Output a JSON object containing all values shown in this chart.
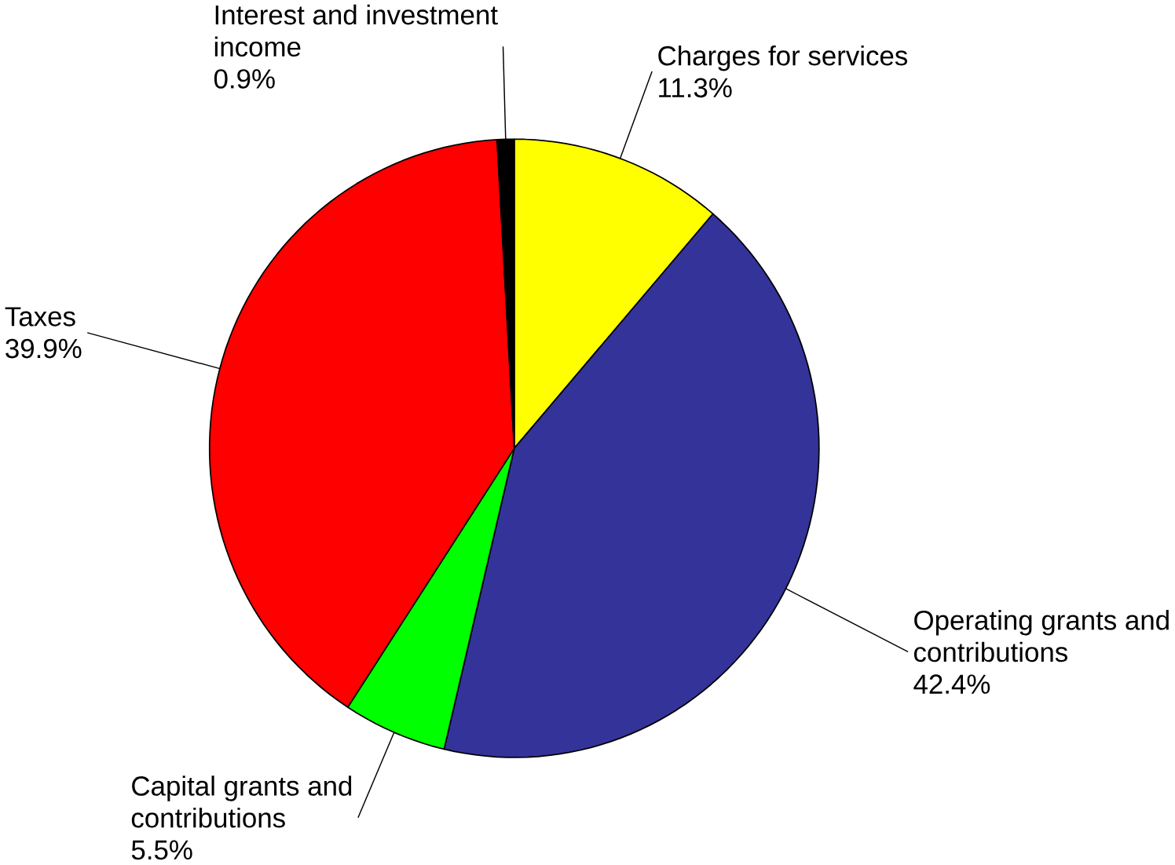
{
  "chart_data": {
    "type": "pie",
    "categories": [
      "Charges for services",
      "Operating grants and contributions",
      "Capital grants and contributions",
      "Taxes",
      "Interest and investment income"
    ],
    "values": [
      11.3,
      42.4,
      5.5,
      39.9,
      0.9
    ],
    "value_labels": [
      "11.3%",
      "42.4%",
      "5.5%",
      "39.9%",
      "0.9%"
    ],
    "colors": [
      "#ffff00",
      "#333399",
      "#00ff00",
      "#ff0000",
      "#000000"
    ]
  }
}
